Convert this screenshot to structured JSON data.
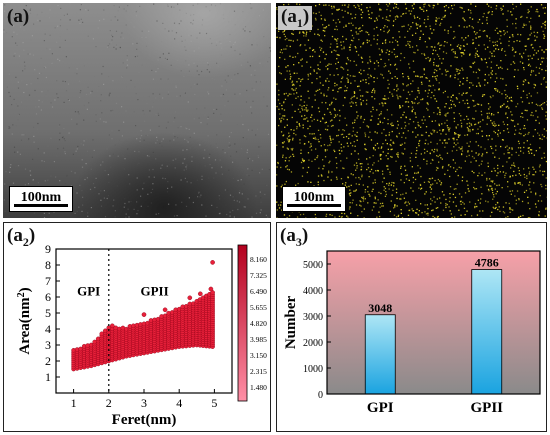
{
  "panels": {
    "a": {
      "label": "(a)",
      "scale_bar": "100nm"
    },
    "a1": {
      "label_main": "(a",
      "label_sub": "1",
      "label_close": ")",
      "scale_bar": "100nm"
    },
    "a2": {
      "label_main": "(a",
      "label_sub": "2",
      "label_close": ")"
    },
    "a3": {
      "label_main": "(a",
      "label_sub": "3",
      "label_close": ")"
    }
  },
  "colors": {
    "scatter_point": "#e8203a",
    "colorbar_top": "#b3001e",
    "colorbar_bottom": "#ff8fa6",
    "bar_top": "#aee6f5",
    "bar_bottom": "#1aa3e0",
    "bg_top": "#f7a0a8",
    "bg_bottom": "#8a8a8a",
    "eds_dot": "#e2d42a"
  },
  "chart_data": [
    {
      "id": "a2",
      "type": "scatter",
      "xlabel": "Feret(nm)",
      "ylabel_main": "Area(nm",
      "ylabel_sup": "2",
      "ylabel_close": ")",
      "xlim": [
        0.5,
        5.5
      ],
      "ylim": [
        0,
        9
      ],
      "xticks": [
        "1",
        "2",
        "3",
        "4",
        "5"
      ],
      "yticks": [
        "1",
        "2",
        "3",
        "4",
        "5",
        "6",
        "7",
        "8",
        "9"
      ],
      "divider_x": 2,
      "region_labels": [
        {
          "text": "GPI",
          "x": 1.1,
          "y": 6.1
        },
        {
          "text": "GPII",
          "x": 2.9,
          "y": 6.1
        }
      ],
      "colorbar_ticks": [
        "1.480",
        "2.315",
        "3.150",
        "3.985",
        "4.820",
        "5.655",
        "6.490",
        "7.325",
        "8.160"
      ],
      "columns": [
        {
          "x": 1.0,
          "min": 1.5,
          "max": 2.7
        },
        {
          "x": 1.5,
          "min": 1.7,
          "max": 3.1
        },
        {
          "x": 2.0,
          "min": 2.0,
          "max": 4.1
        },
        {
          "x": 2.5,
          "min": 2.3,
          "max": 4.1
        },
        {
          "x": 3.0,
          "min": 2.5,
          "max": 4.4
        },
        {
          "x": 3.5,
          "min": 2.7,
          "max": 4.8
        },
        {
          "x": 4.0,
          "min": 2.9,
          "max": 5.3
        },
        {
          "x": 4.5,
          "min": 3.0,
          "max": 5.8
        },
        {
          "x": 4.95,
          "min": 2.9,
          "max": 6.3
        }
      ],
      "outliers": [
        {
          "x": 4.95,
          "y": 8.16
        },
        {
          "x": 4.9,
          "y": 6.5
        },
        {
          "x": 4.6,
          "y": 6.2
        },
        {
          "x": 3.6,
          "y": 5.2
        },
        {
          "x": 3.0,
          "y": 4.9
        },
        {
          "x": 2.1,
          "y": 4.2
        },
        {
          "x": 4.3,
          "y": 5.95
        }
      ]
    },
    {
      "id": "a3",
      "type": "bar",
      "categories": [
        "GPI",
        "GPII"
      ],
      "values": [
        3048,
        4786
      ],
      "value_labels": [
        "3048",
        "4786"
      ],
      "ylabel": "Number",
      "ylim": [
        0,
        5500
      ],
      "yticks": [
        "0",
        "1000",
        "2000",
        "3000",
        "4000",
        "5000"
      ]
    }
  ]
}
